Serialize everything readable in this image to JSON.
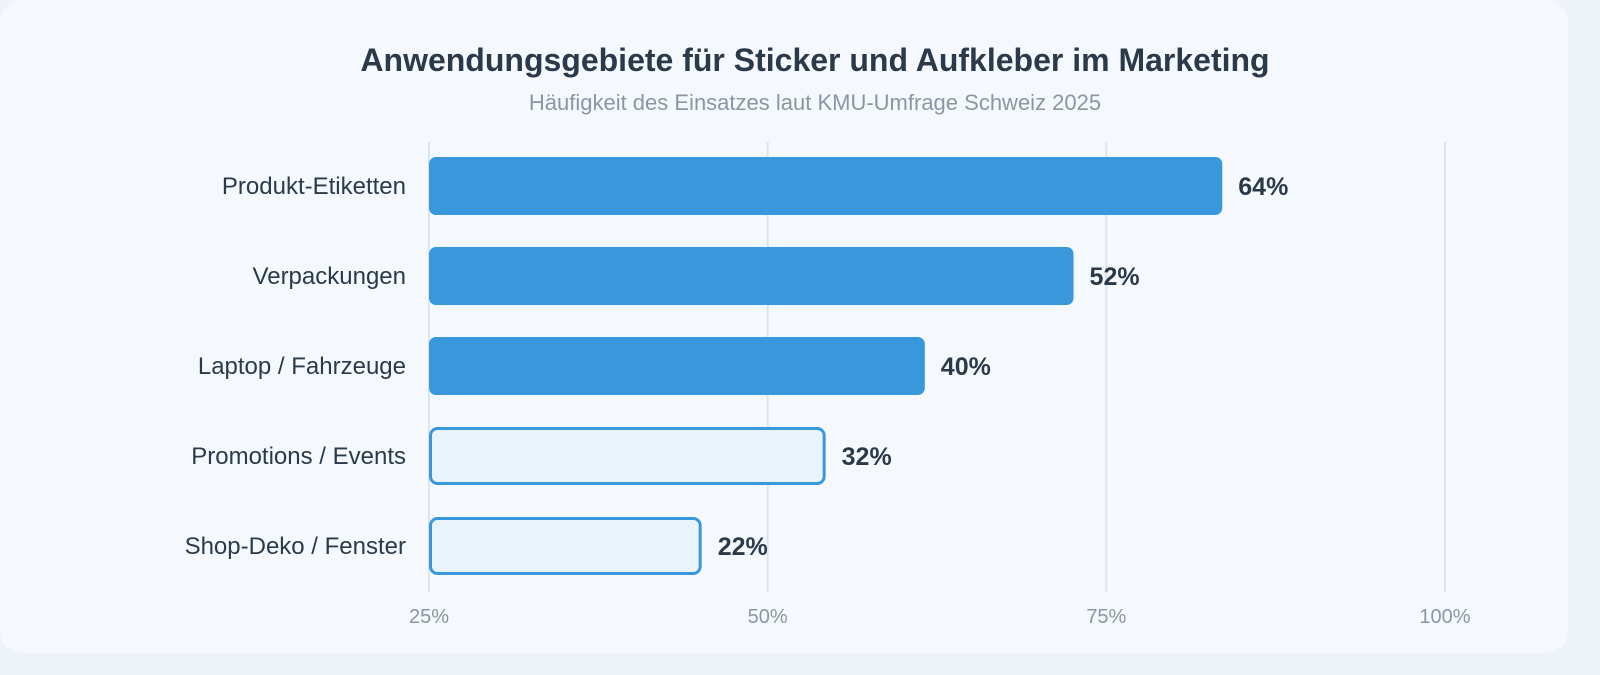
{
  "chart_data": {
    "type": "bar",
    "orientation": "horizontal",
    "title": "Anwendungsgebiete für Sticker und Aufkleber im Marketing",
    "subtitle": "Häufigkeit des Einsatzes laut KMU-Umfrage Schweiz 2025",
    "categories": [
      "Produkt-Etiketten",
      "Verpackungen",
      "Laptop / Fahrzeuge",
      "Promotions / Events",
      "Shop-Deko / Fenster"
    ],
    "values": [
      64,
      52,
      40,
      32,
      22
    ],
    "value_labels": [
      "64%",
      "52%",
      "40%",
      "32%",
      "22%"
    ],
    "bar_style": [
      "filled",
      "filled",
      "filled",
      "outlined",
      "outlined"
    ],
    "xlim": [
      25,
      100
    ],
    "x_ticks": [
      25,
      50,
      75,
      100
    ],
    "x_tick_labels": [
      "25%",
      "50%",
      "75%",
      "100%"
    ],
    "grid": true,
    "colors": {
      "bar_fill": "#3898db",
      "bar_outline_fill": "#e8f3fc",
      "bar_outline_stroke": "#3898db",
      "grid": "#dde3e9",
      "label": "#2b3a4b",
      "tick": "#8a96a3"
    }
  }
}
